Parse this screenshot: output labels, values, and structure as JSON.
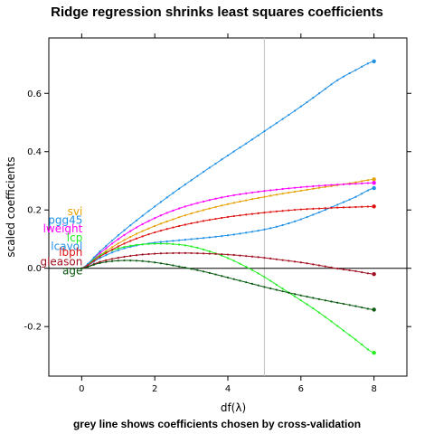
{
  "chart_data": {
    "type": "line",
    "title": "Ridge regression shrinks least squares coefficients",
    "subtitle": "grey line shows coefficients chosen by cross-validation",
    "xlabel": "df(λ)",
    "ylabel": "scaled coefficients",
    "xlim": [
      -0.9,
      8.9
    ],
    "ylim": [
      -0.37,
      0.79
    ],
    "x_ticks": [
      0,
      2,
      4,
      6,
      8
    ],
    "y_ticks": [
      -0.2,
      0.0,
      0.2,
      0.4,
      0.6
    ],
    "y_tick_labels": [
      "-0.2",
      "0.0",
      "0.2",
      "0.4",
      "0.6"
    ],
    "reference_vline_x": 5.0,
    "reference_hline_y": 0.0,
    "grid": false,
    "legend": "labels placed left of the curves at x = 0",
    "series": [
      {
        "name": "svi",
        "color": "#e6a000",
        "x": [
          0,
          0.5,
          1,
          1.5,
          2,
          2.5,
          3,
          3.5,
          4,
          4.5,
          5,
          5.5,
          6,
          6.5,
          7,
          7.5,
          8
        ],
        "y": [
          0,
          0.045,
          0.085,
          0.118,
          0.145,
          0.168,
          0.188,
          0.205,
          0.22,
          0.233,
          0.245,
          0.256,
          0.266,
          0.276,
          0.285,
          0.295,
          0.305
        ]
      },
      {
        "name": "pgg45",
        "color": "#1e90e6",
        "x": [
          0,
          0.5,
          1,
          1.5,
          2,
          2.5,
          3,
          3.5,
          4,
          4.5,
          5,
          5.5,
          6,
          6.5,
          7,
          7.5,
          8
        ],
        "y": [
          0,
          0.035,
          0.062,
          0.078,
          0.088,
          0.094,
          0.1,
          0.106,
          0.113,
          0.122,
          0.133,
          0.148,
          0.168,
          0.192,
          0.218,
          0.245,
          0.275
        ]
      },
      {
        "name": "lweight",
        "color": "#ff00ff",
        "x": [
          0,
          0.5,
          1,
          1.5,
          2,
          2.5,
          3,
          3.5,
          4,
          4.5,
          5,
          5.5,
          6,
          6.5,
          7,
          7.5,
          8
        ],
        "y": [
          0,
          0.052,
          0.1,
          0.14,
          0.172,
          0.198,
          0.218,
          0.234,
          0.247,
          0.257,
          0.265,
          0.272,
          0.278,
          0.283,
          0.287,
          0.29,
          0.293
        ]
      },
      {
        "name": "lcp",
        "color": "#22ee22",
        "x": [
          0,
          0.5,
          1,
          1.5,
          2,
          2.5,
          3,
          3.5,
          4,
          4.5,
          5,
          5.5,
          6,
          6.5,
          7,
          7.5,
          8
        ],
        "y": [
          0,
          0.045,
          0.068,
          0.08,
          0.084,
          0.083,
          0.075,
          0.058,
          0.035,
          0.005,
          -0.03,
          -0.07,
          -0.11,
          -0.152,
          -0.198,
          -0.245,
          -0.29
        ]
      },
      {
        "name": "lcavol",
        "color": "#1e90e6",
        "x": [
          0,
          0.5,
          1,
          1.5,
          2,
          2.5,
          3,
          3.5,
          4,
          4.5,
          5,
          5.5,
          6,
          6.5,
          7,
          7.5,
          8
        ],
        "y": [
          0,
          0.058,
          0.113,
          0.164,
          0.212,
          0.258,
          0.302,
          0.345,
          0.387,
          0.428,
          0.47,
          0.512,
          0.555,
          0.6,
          0.645,
          0.68,
          0.71
        ]
      },
      {
        "name": "lbph",
        "color": "#e01010",
        "x": [
          0,
          0.5,
          1,
          1.5,
          2,
          2.5,
          3,
          3.5,
          4,
          4.5,
          5,
          5.5,
          6,
          6.5,
          7,
          7.5,
          8
        ],
        "y": [
          0,
          0.04,
          0.075,
          0.102,
          0.123,
          0.14,
          0.154,
          0.166,
          0.176,
          0.184,
          0.191,
          0.197,
          0.202,
          0.205,
          0.208,
          0.21,
          0.212
        ]
      },
      {
        "name": "gleason",
        "color": "#a01020",
        "x": [
          0,
          0.5,
          1,
          1.5,
          2,
          2.5,
          3,
          3.5,
          4,
          4.5,
          5,
          5.5,
          6,
          6.5,
          7,
          7.5,
          8
        ],
        "y": [
          0,
          0.022,
          0.036,
          0.045,
          0.05,
          0.052,
          0.052,
          0.05,
          0.047,
          0.042,
          0.036,
          0.028,
          0.02,
          0.01,
          -0.001,
          -0.01,
          -0.02
        ]
      },
      {
        "name": "age",
        "color": "#0a5a10",
        "x": [
          0,
          0.5,
          1,
          1.5,
          2,
          2.5,
          3,
          3.5,
          4,
          4.5,
          5,
          5.5,
          6,
          6.5,
          7,
          7.5,
          8
        ],
        "y": [
          0,
          0.018,
          0.026,
          0.026,
          0.02,
          0.01,
          -0.002,
          -0.016,
          -0.032,
          -0.048,
          -0.064,
          -0.079,
          -0.093,
          -0.106,
          -0.118,
          -0.13,
          -0.142
        ]
      }
    ],
    "label_positions_y": {
      "svi": 0.195,
      "pgg45": 0.165,
      "lweight": 0.135,
      "lcp": 0.105,
      "lcavol": 0.075,
      "lbph": 0.055,
      "gleason": 0.022,
      "age": -0.008
    }
  }
}
